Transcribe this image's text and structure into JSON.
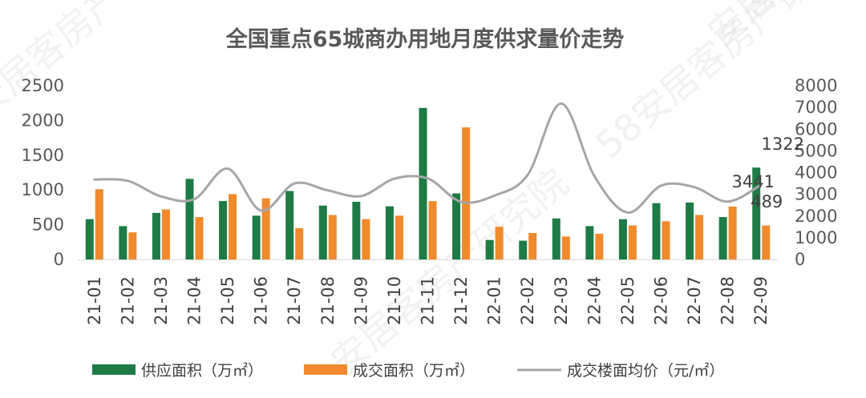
{
  "chart_data": {
    "type": "bar",
    "title": "全国重点65城商办用地月度供求量价走势",
    "categories": [
      "21-01",
      "21-02",
      "21-03",
      "21-04",
      "21-05",
      "21-06",
      "21-07",
      "21-08",
      "21-09",
      "21-10",
      "21-11",
      "21-12",
      "22-01",
      "22-02",
      "22-03",
      "22-04",
      "22-05",
      "22-06",
      "22-07",
      "22-08",
      "22-09"
    ],
    "y_left": {
      "ylim": [
        0,
        2500
      ],
      "ticks": [
        "0",
        "500",
        "1000",
        "1500",
        "2000",
        "2500"
      ]
    },
    "y_right": {
      "ylim": [
        0,
        8000
      ],
      "ticks": [
        "0",
        "1000",
        "2000",
        "3000",
        "4000",
        "5000",
        "6000",
        "7000",
        "8000"
      ]
    },
    "series": [
      {
        "name": "供应面积（万㎡）",
        "type": "bar",
        "axis": "left",
        "color": "#1e7b45",
        "values": [
          580,
          480,
          670,
          1160,
          840,
          630,
          985,
          775,
          830,
          765,
          2180,
          950,
          280,
          270,
          590,
          480,
          580,
          810,
          820,
          610,
          1322
        ]
      },
      {
        "name": "成交面积（万㎡）",
        "type": "bar",
        "axis": "left",
        "color": "#f08a2c",
        "values": [
          1010,
          390,
          720,
          610,
          940,
          880,
          450,
          640,
          580,
          630,
          840,
          1900,
          470,
          380,
          330,
          370,
          490,
          550,
          640,
          760,
          489
        ]
      },
      {
        "name": "成交楼面均价（元/㎡）",
        "type": "line",
        "axis": "right",
        "color": "#a6a6a6",
        "values": [
          3680,
          3620,
          2900,
          2780,
          4180,
          2250,
          3500,
          3180,
          2920,
          3720,
          3730,
          2650,
          2940,
          3900,
          7180,
          3830,
          2160,
          3400,
          3330,
          2660,
          3441
        ]
      }
    ],
    "data_labels": [
      {
        "series": 0,
        "index": 20,
        "text": "1322"
      },
      {
        "series": 2,
        "index": 20,
        "text": "3441"
      },
      {
        "series": 1,
        "index": 20,
        "text": "489"
      }
    ],
    "legend_position": "bottom",
    "grid": false,
    "watermarks": [
      "安居客房产研究院",
      "58安居客房产研究院"
    ]
  }
}
